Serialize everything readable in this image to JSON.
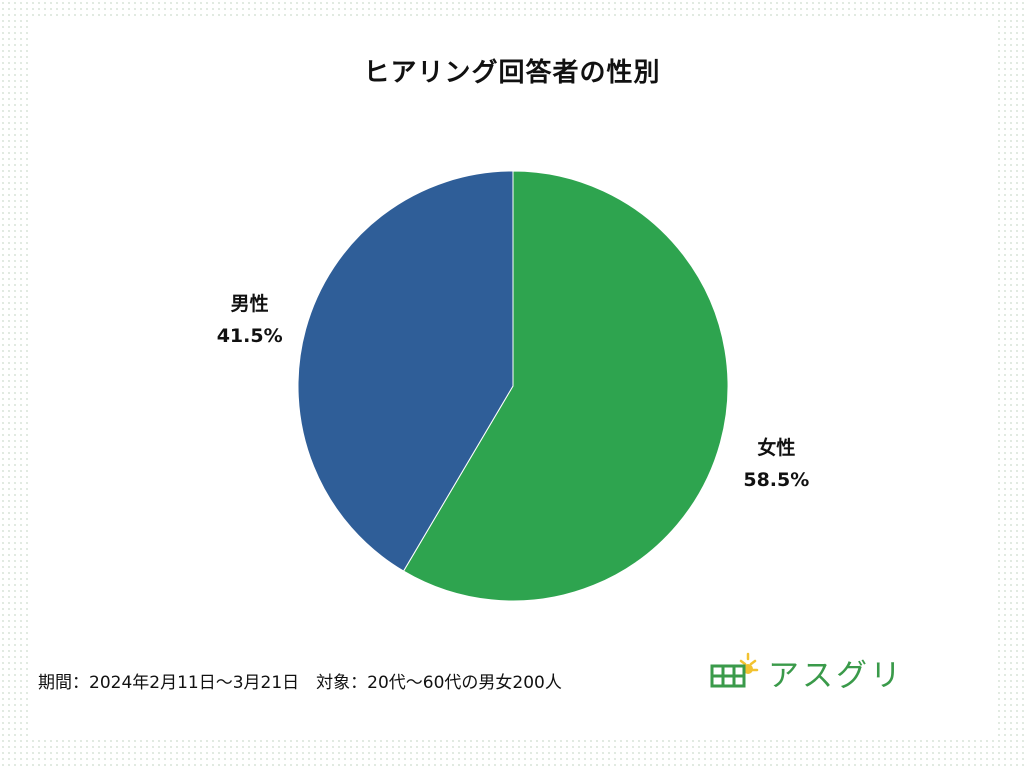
{
  "chart_data": {
    "type": "pie",
    "title": "ヒアリング回答者の性別",
    "slices": [
      {
        "label": "女性",
        "value": 58.5,
        "value_label": "58.5%",
        "color": "#2ea44f"
      },
      {
        "label": "男性",
        "value": 41.5,
        "value_label": "41.5%",
        "color": "#2f5e98"
      }
    ],
    "start_angle_deg": 0,
    "direction": "clockwise"
  },
  "footer": {
    "text": "期間：2024年2月11日～3月21日　対象：20代～60代の男女200人"
  },
  "logo": {
    "text": "アスグリ",
    "icon": "solar-panel-sun-icon",
    "color": "#3a9a4a",
    "sun_color": "#f2c230"
  }
}
